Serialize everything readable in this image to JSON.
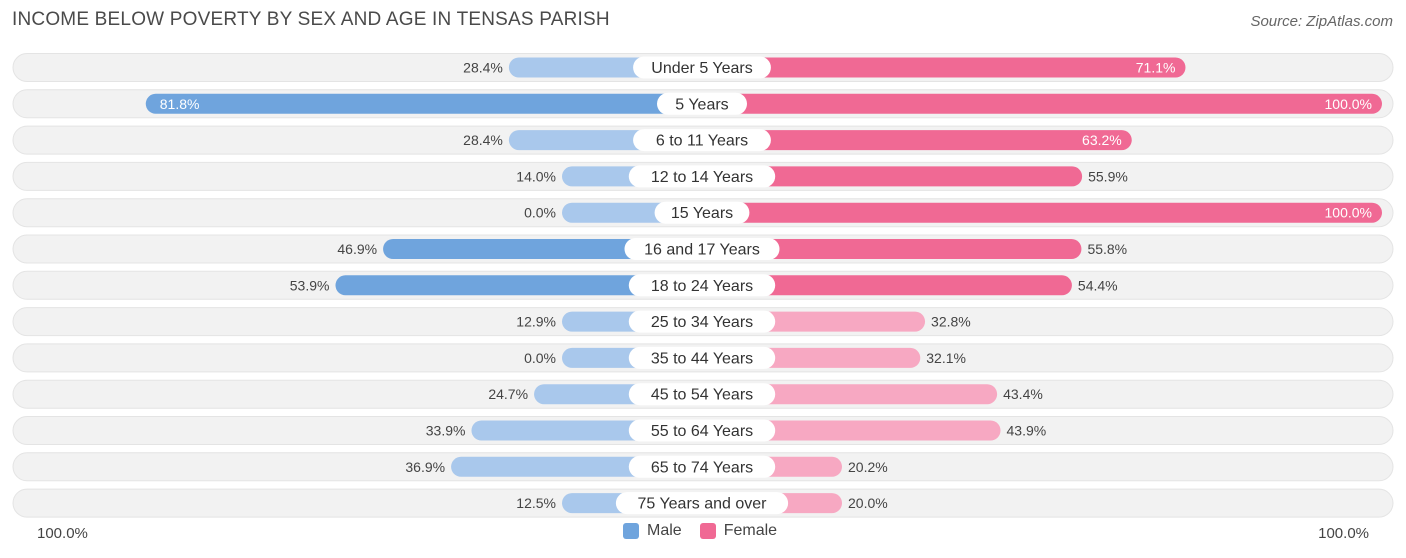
{
  "title": "INCOME BELOW POVERTY BY SEX AND AGE IN TENSAS PARISH",
  "source": "Source: ZipAtlas.com",
  "footer": {
    "left": "100.0%",
    "right": "100.0%"
  },
  "colors": {
    "male": "#6fa4dd",
    "male_light": "#a9c8ec",
    "female": "#f06994",
    "female_light": "#f7a8c2",
    "track": "#f0f0f0"
  },
  "chart_data": {
    "type": "bar",
    "orientation": "horizontal-diverging",
    "categories": [
      "Under 5 Years",
      "5 Years",
      "6 to 11 Years",
      "12 to 14 Years",
      "15 Years",
      "16 and 17 Years",
      "18 to 24 Years",
      "25 to 34 Years",
      "35 to 44 Years",
      "45 to 54 Years",
      "55 to 64 Years",
      "65 to 74 Years",
      "75 Years and over"
    ],
    "series": [
      {
        "name": "Male",
        "values": [
          28.4,
          81.8,
          28.4,
          14.0,
          0.0,
          46.9,
          53.9,
          12.9,
          0.0,
          24.7,
          33.9,
          36.9,
          12.5
        ],
        "labels": [
          "28.4%",
          "81.8%",
          "28.4%",
          "14.0%",
          "0.0%",
          "46.9%",
          "53.9%",
          "12.9%",
          "0.0%",
          "24.7%",
          "33.9%",
          "36.9%",
          "12.5%"
        ]
      },
      {
        "name": "Female",
        "values": [
          71.1,
          100.0,
          63.2,
          55.9,
          100.0,
          55.8,
          54.4,
          32.8,
          32.1,
          43.4,
          43.9,
          20.2,
          20.0
        ],
        "labels": [
          "71.1%",
          "100.0%",
          "63.2%",
          "55.9%",
          "100.0%",
          "55.8%",
          "54.4%",
          "32.8%",
          "32.1%",
          "43.4%",
          "43.9%",
          "20.2%",
          "20.0%"
        ]
      }
    ],
    "xlim": [
      -100,
      100
    ],
    "legend": "bottom-center"
  }
}
